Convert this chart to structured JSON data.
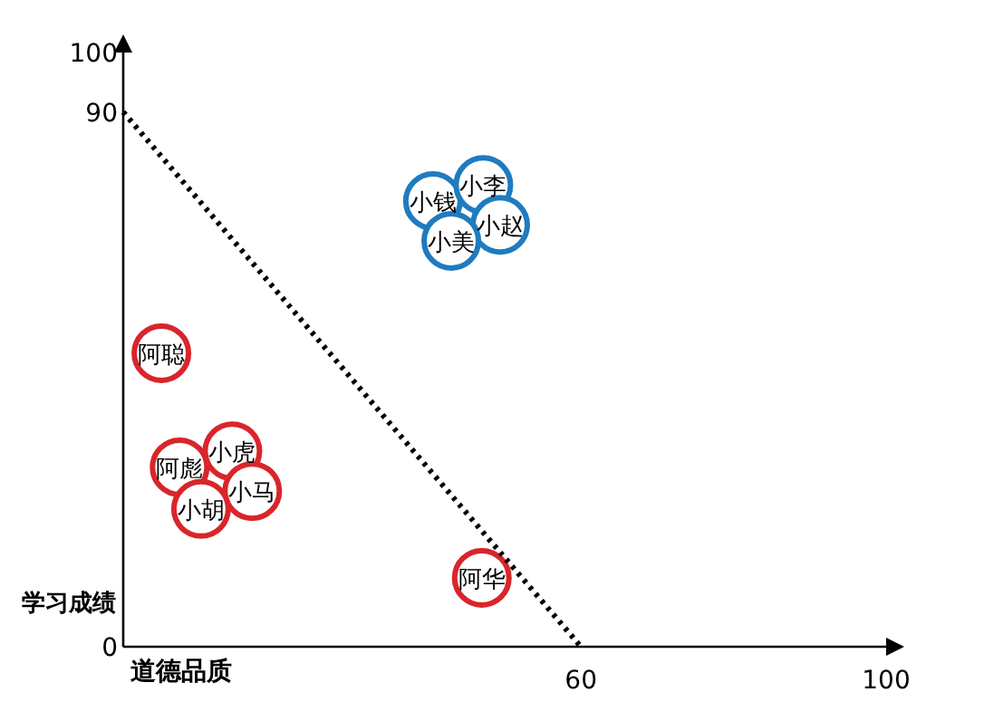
{
  "chart_data": {
    "type": "scatter",
    "xlabel": "道德品质",
    "ylabel": "学习成绩",
    "xlim": [
      0,
      100
    ],
    "ylim": [
      0,
      100
    ],
    "xticks": [
      60,
      100
    ],
    "yticks": [
      0,
      90,
      100
    ],
    "grid": false,
    "series": [
      {
        "color": "#1f7bbf",
        "marker": "circle",
        "x": [
          40.6,
          47.2,
          49.4,
          43
        ],
        "values": [
          75,
          77.7,
          71,
          68.3
        ]
      },
      {
        "color": "#d9252b",
        "marker": "circle",
        "x": [
          5,
          7.4,
          14.3,
          16.9,
          10.2,
          47
        ],
        "values": [
          49.4,
          30.2,
          32.9,
          26.2,
          23.2,
          11.6
        ]
      },
      {
        "type": "line",
        "color": "#000000",
        "line_style": "dotted",
        "marker": "none",
        "x": [
          0,
          60
        ],
        "values": [
          90,
          0
        ]
      }
    ],
    "annotations": [
      {
        "text": "小钱",
        "x": 40.6,
        "y": 75
      },
      {
        "text": "小李",
        "x": 47.2,
        "y": 77.7
      },
      {
        "text": "小赵",
        "x": 49.4,
        "y": 71
      },
      {
        "text": "小美",
        "x": 43,
        "y": 68.3
      },
      {
        "text": "阿聪",
        "x": 5,
        "y": 49.4
      },
      {
        "text": "阿彪",
        "x": 7.4,
        "y": 30.2
      },
      {
        "text": "小虎",
        "x": 14.3,
        "y": 32.9
      },
      {
        "text": "小马",
        "x": 16.9,
        "y": 26.2
      },
      {
        "text": "小胡",
        "x": 10.2,
        "y": 23.2
      },
      {
        "text": "阿华",
        "x": 47,
        "y": 11.6
      }
    ]
  }
}
